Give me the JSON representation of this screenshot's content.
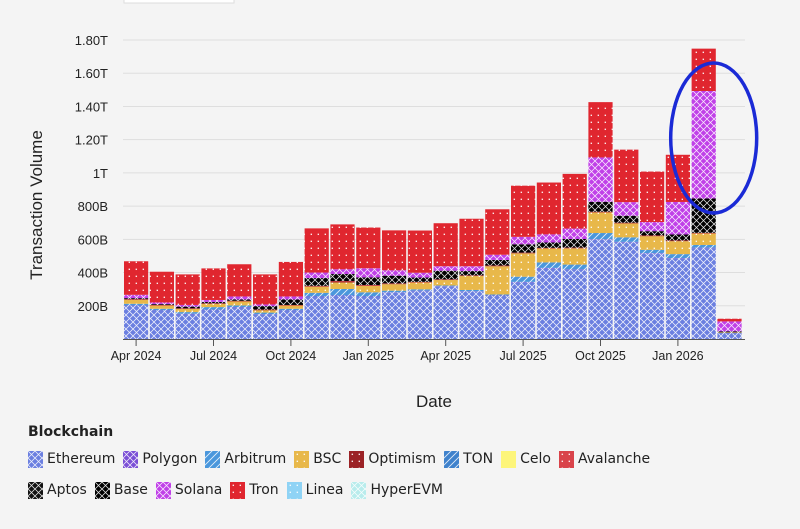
{
  "chart_data": {
    "type": "bar",
    "stacked": true,
    "xlabel": "Date",
    "ylabel": "Transaction Volume",
    "ylim": [
      0,
      1800
    ],
    "y_unit": "B",
    "grid": true,
    "yticks": [
      200,
      400,
      600,
      800,
      1000,
      1200,
      1400,
      1600,
      1800
    ],
    "ytick_labels": [
      "200B",
      "400B",
      "600B",
      "800B",
      "1T",
      "1.20T",
      "1.40T",
      "1.60T",
      "1.80T"
    ],
    "categories": [
      "Apr 2024",
      "May 2024",
      "Jun 2024",
      "Jul 2024",
      "Aug 2024",
      "Sep 2024",
      "Oct 2024",
      "Nov 2024",
      "Dec 2024",
      "Jan 2025",
      "Feb 2025",
      "Mar 2025",
      "Apr 2025",
      "May 2025",
      "Jun 2025",
      "Jul 2025",
      "Aug 2025",
      "Sep 2025",
      "Oct 2025",
      "Nov 2025",
      "Dec 2025",
      "Jan 2026",
      "Feb 2026",
      "Mar 2026"
    ],
    "xtick_labels": [
      "Apr 2024",
      "Jul 2024",
      "Oct 2024",
      "Jan 2025",
      "Apr 2025",
      "Jul 2025",
      "Oct 2025",
      "Jan 2026"
    ],
    "legend_title": "Blockchain",
    "legend_position": "bottom",
    "annotation": {
      "type": "ellipse",
      "color": "#1a2ad6",
      "around": "Feb 2026"
    },
    "series": [
      {
        "name": "Ethereum",
        "color": "#6b7fe0",
        "pattern": "crosshatch",
        "values": [
          200,
          170,
          150,
          175,
          190,
          147,
          170,
          253,
          259,
          253,
          278,
          288,
          314,
          284,
          259,
          341,
          425,
          416,
          598,
          582,
          514,
          484,
          547,
          33
        ]
      },
      {
        "name": "Polygon",
        "color": "#7b4fd6",
        "pattern": "crosshatch",
        "values": [
          2,
          2,
          2,
          2,
          2,
          2,
          2,
          3,
          3,
          3,
          3,
          3,
          3,
          3,
          3,
          3,
          3,
          3,
          3,
          3,
          3,
          3,
          3,
          1
        ]
      },
      {
        "name": "Arbitrum",
        "color": "#4a97dc",
        "pattern": "diagonal",
        "values": [
          10,
          10,
          10,
          15,
          10,
          10,
          10,
          22,
          39,
          25,
          10,
          8,
          5,
          8,
          6,
          31,
          33,
          29,
          37,
          27,
          20,
          24,
          16,
          3
        ]
      },
      {
        "name": "BSC",
        "color": "#e8b84a",
        "pattern": "dots",
        "values": [
          25,
          20,
          20,
          20,
          25,
          15,
          20,
          37,
          39,
          39,
          39,
          41,
          33,
          84,
          170,
          141,
          84,
          98,
          124,
          84,
          82,
          78,
          69,
          3
        ]
      },
      {
        "name": "Optimism",
        "color": "#9b2226",
        "pattern": "dots",
        "values": [
          2,
          2,
          2,
          2,
          2,
          2,
          2,
          4,
          8,
          4,
          4,
          3,
          3,
          3,
          3,
          3,
          3,
          3,
          3,
          3,
          3,
          3,
          3,
          0
        ]
      },
      {
        "name": "TON",
        "color": "#3f82cc",
        "pattern": "diagonal",
        "values": [
          0,
          0,
          0,
          0,
          0,
          0,
          0,
          0,
          0,
          0,
          0,
          0,
          0,
          0,
          0,
          0,
          0,
          0,
          0,
          0,
          0,
          0,
          0,
          0
        ]
      },
      {
        "name": "Celo",
        "color": "#fdf57a",
        "pattern": "solid",
        "values": [
          0,
          0,
          0,
          0,
          0,
          0,
          0,
          0,
          0,
          0,
          0,
          0,
          0,
          0,
          0,
          0,
          0,
          0,
          0,
          0,
          0,
          0,
          0,
          0
        ]
      },
      {
        "name": "Avalanche",
        "color": "#d9434a",
        "pattern": "dots",
        "values": [
          1,
          1,
          1,
          1,
          1,
          1,
          1,
          1,
          1,
          1,
          1,
          1,
          1,
          1,
          1,
          1,
          1,
          1,
          1,
          1,
          1,
          1,
          1,
          0
        ]
      },
      {
        "name": "Aptos",
        "color": "#111111",
        "pattern": "crosshatch",
        "values": [
          0,
          0,
          0,
          0,
          0,
          0,
          0,
          0,
          0,
          0,
          0,
          0,
          0,
          0,
          0,
          0,
          0,
          0,
          0,
          0,
          0,
          0,
          0,
          0
        ]
      },
      {
        "name": "Base",
        "color": "#000000",
        "pattern": "crosshatch",
        "values": [
          6,
          5,
          10,
          8,
          8,
          21,
          33,
          47,
          42,
          46,
          46,
          26,
          52,
          26,
          34,
          50,
          32,
          52,
          60,
          42,
          26,
          36,
          207,
          6
        ]
      },
      {
        "name": "Solana",
        "color": "#c040e8",
        "pattern": "crosshatch",
        "values": [
          20,
          10,
          10,
          12,
          18,
          10,
          18,
          33,
          29,
          55,
          33,
          29,
          27,
          29,
          31,
          45,
          49,
          63,
          267,
          82,
          55,
          196,
          647,
          60
        ]
      },
      {
        "name": "Tron",
        "color": "#e0262f",
        "pattern": "dots",
        "values": [
          202,
          185,
          184,
          190,
          194,
          181,
          208,
          266,
          270,
          245,
          240,
          254,
          259,
          286,
          274,
          308,
          312,
          329,
          333,
          316,
          304,
          284,
          255,
          16
        ]
      },
      {
        "name": "Linea",
        "color": "#8fd3f5",
        "pattern": "dots",
        "values": [
          0,
          0,
          0,
          0,
          0,
          0,
          0,
          0,
          0,
          0,
          0,
          0,
          0,
          0,
          0,
          0,
          0,
          0,
          0,
          0,
          0,
          0,
          0,
          0
        ]
      },
      {
        "name": "HyperEVM",
        "color": "#b8ecec",
        "pattern": "crosshatch",
        "values": [
          0,
          0,
          0,
          0,
          0,
          0,
          0,
          0,
          0,
          0,
          0,
          0,
          0,
          0,
          0,
          0,
          0,
          0,
          0,
          0,
          0,
          0,
          0,
          0
        ]
      }
    ]
  }
}
